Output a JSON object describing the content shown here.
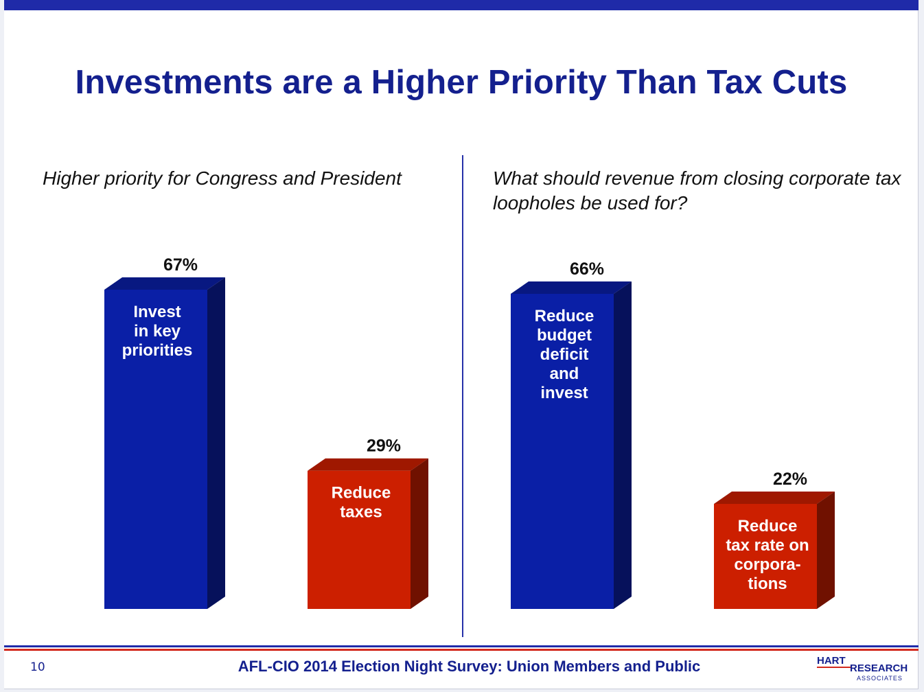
{
  "slide": {
    "title": "Investments are a Higher Priority Than Tax Cuts",
    "page_number": "10",
    "footer": "AFL-CIO 2014 Election Night Survey:  Union Members and Public",
    "logo": {
      "top": "HART",
      "bottom": "RESEARCH",
      "sub": "ASSOCIATES"
    }
  },
  "colors": {
    "blue": "#0a1fa6",
    "red": "#cc1f00",
    "title": "#14208e"
  },
  "chart_data": [
    {
      "type": "bar",
      "title": "Higher priority for Congress and President",
      "categories": [
        "Invest in key priorities",
        "Reduce taxes"
      ],
      "bar_labels": [
        [
          "Invest",
          "in key",
          "priorities"
        ],
        [
          "Reduce",
          "taxes"
        ]
      ],
      "values": [
        67,
        29
      ],
      "value_labels": [
        "67%",
        "29%"
      ],
      "colors": [
        "#0a1fa6",
        "#cc1f00"
      ],
      "ylim": [
        0,
        100
      ],
      "grid": false
    },
    {
      "type": "bar",
      "title": "What should revenue from closing corporate tax loopholes be used for?",
      "categories": [
        "Reduce budget deficit and invest",
        "Reduce tax rate on corporations"
      ],
      "bar_labels": [
        [
          "Reduce",
          "budget",
          "deficit",
          "and",
          "invest"
        ],
        [
          "Reduce",
          "tax rate on",
          "corpora-",
          "tions"
        ]
      ],
      "values": [
        66,
        22
      ],
      "value_labels": [
        "66%",
        "22%"
      ],
      "colors": [
        "#0a1fa6",
        "#cc1f00"
      ],
      "ylim": [
        0,
        100
      ],
      "grid": false
    }
  ]
}
